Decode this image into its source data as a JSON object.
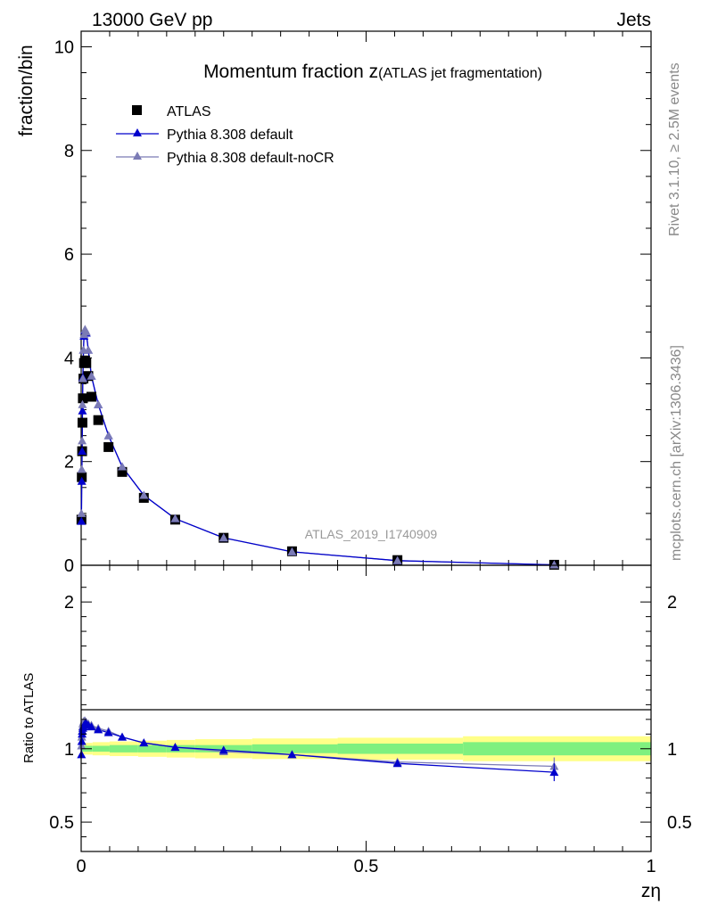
{
  "header": {
    "left": "13000 GeV pp",
    "right": "Jets"
  },
  "side": {
    "rivet": "Rivet 3.1.10, ≥ 2.5M events",
    "mcplots": "mcplots.cern.ch [arXiv:1306.3436]"
  },
  "colors": {
    "atlas": "#000000",
    "default": "#0000cc",
    "noCR": "#7b7bb5",
    "band_inner": "#7ff07f",
    "band_outer": "#ffff88"
  },
  "chart_data": [
    {
      "type": "line",
      "title_main": "Momentum fraction z",
      "title_sub": "(ATLAS jet fragmentation)",
      "ylabel": "fraction/bin",
      "watermark": "ATLAS_2019_I1740909",
      "xlim": [
        0,
        1
      ],
      "ylim": [
        0,
        10.3
      ],
      "yticks": [
        "0",
        "2",
        "4",
        "6",
        "8",
        "10"
      ],
      "legend_position": "top-left",
      "series": [
        {
          "name": "ATLAS",
          "marker": "square",
          "x": [
            0.0005,
            0.0011,
            0.0017,
            0.0023,
            0.003,
            0.004,
            0.005,
            0.0068,
            0.009,
            0.0125,
            0.018,
            0.03,
            0.048,
            0.072,
            0.11,
            0.165,
            0.25,
            0.37,
            0.555,
            0.83
          ],
          "y": [
            0.88,
            1.7,
            2.2,
            2.75,
            3.22,
            3.6,
            3.9,
            3.95,
            3.9,
            3.65,
            3.25,
            2.8,
            2.28,
            1.8,
            1.3,
            0.88,
            0.53,
            0.27,
            0.1,
            0.01
          ]
        },
        {
          "name": "Pythia 8.308 default",
          "marker": "triangle",
          "x": [
            0.0005,
            0.0011,
            0.0017,
            0.0023,
            0.003,
            0.004,
            0.005,
            0.0068,
            0.009,
            0.0125,
            0.018,
            0.03,
            0.048,
            0.072,
            0.11,
            0.165,
            0.25,
            0.37,
            0.555,
            0.83
          ],
          "y": [
            0.85,
            1.62,
            2.2,
            2.98,
            3.62,
            4.15,
            4.42,
            4.53,
            4.48,
            4.15,
            3.65,
            3.1,
            2.5,
            1.9,
            1.35,
            0.9,
            0.53,
            0.26,
            0.09,
            0.008
          ]
        },
        {
          "name": "Pythia 8.308 default-noCR",
          "marker": "triangle",
          "x": [
            0.0005,
            0.0011,
            0.0017,
            0.0023,
            0.003,
            0.004,
            0.005,
            0.0068,
            0.009,
            0.0125,
            0.018,
            0.03,
            0.048,
            0.072,
            0.11,
            0.165,
            0.25,
            0.37,
            0.555,
            0.83
          ],
          "y": [
            1.0,
            1.85,
            2.4,
            3.1,
            3.6,
            4.15,
            4.45,
            4.55,
            4.5,
            4.15,
            3.65,
            3.1,
            2.5,
            1.9,
            1.35,
            0.9,
            0.53,
            0.26,
            0.09,
            0.009
          ]
        }
      ]
    },
    {
      "type": "line",
      "ylabel": "Ratio to ATLAS",
      "xlabel": "zη",
      "xlim": [
        0,
        1
      ],
      "ylim": [
        0.3,
        2.25
      ],
      "xticks": [
        "0",
        "0.5",
        "1"
      ],
      "yticks": [
        "0.5",
        "1",
        "2"
      ],
      "band": {
        "edges": [
          0,
          0.02,
          0.05,
          0.1,
          0.15,
          0.2,
          0.3,
          0.45,
          0.67,
          1.0
        ],
        "inner": [
          0.02,
          0.02,
          0.025,
          0.025,
          0.025,
          0.025,
          0.03,
          0.035,
          0.045
        ],
        "outer": [
          0.04,
          0.045,
          0.05,
          0.055,
          0.06,
          0.065,
          0.07,
          0.075,
          0.085
        ]
      },
      "series": [
        {
          "name": "Pythia 8.308 default",
          "x": [
            0.0005,
            0.0011,
            0.0017,
            0.0023,
            0.003,
            0.004,
            0.005,
            0.0068,
            0.009,
            0.0125,
            0.018,
            0.03,
            0.048,
            0.072,
            0.11,
            0.165,
            0.25,
            0.37,
            0.555,
            0.83
          ],
          "y": [
            0.96,
            1.05,
            1.1,
            1.12,
            1.14,
            1.15,
            1.16,
            1.17,
            1.17,
            1.16,
            1.15,
            1.13,
            1.11,
            1.08,
            1.04,
            1.01,
            0.99,
            0.96,
            0.9,
            0.84
          ]
        },
        {
          "name": "Pythia 8.308 default-noCR",
          "x": [
            0.0005,
            0.0011,
            0.0017,
            0.0023,
            0.003,
            0.004,
            0.005,
            0.0068,
            0.009,
            0.0125,
            0.018,
            0.03,
            0.048,
            0.072,
            0.11,
            0.165,
            0.25,
            0.37,
            0.555,
            0.83
          ],
          "y": [
            1.02,
            1.08,
            1.12,
            1.15,
            1.17,
            1.18,
            1.19,
            1.19,
            1.18,
            1.17,
            1.16,
            1.14,
            1.12,
            1.08,
            1.04,
            1.01,
            0.98,
            0.96,
            0.91,
            0.88
          ]
        }
      ]
    }
  ]
}
